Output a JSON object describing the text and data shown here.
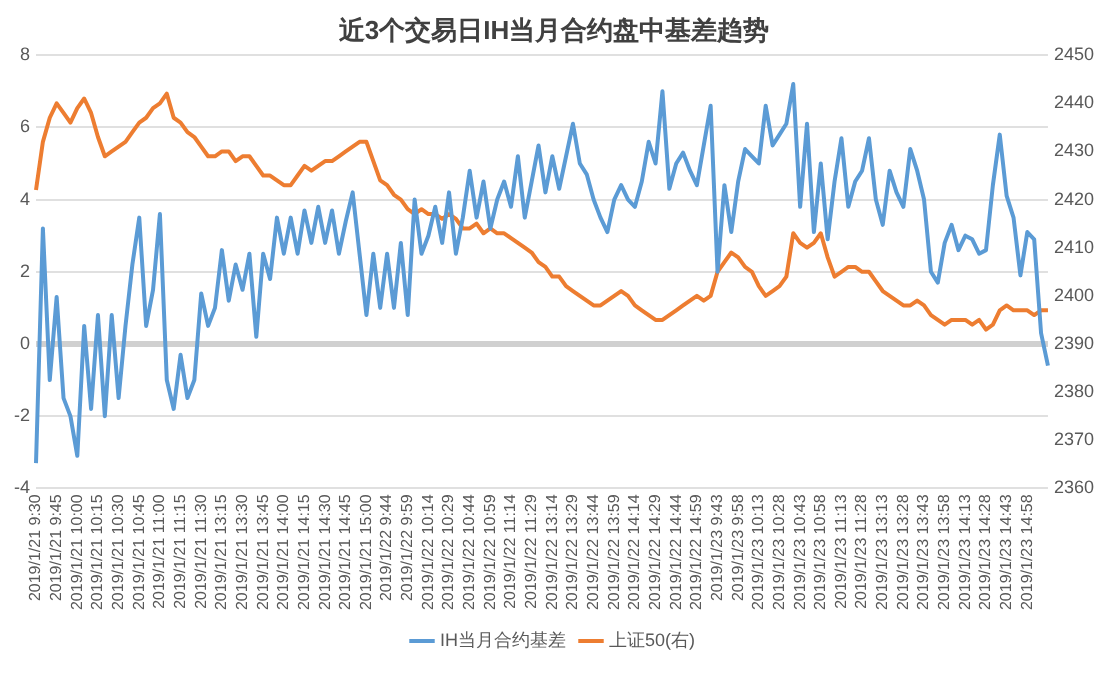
{
  "chart_data": {
    "type": "line",
    "title": "近3个交易日IH当月合约盘中基差趋势",
    "categories": [
      "2019/1/21 9:30",
      null,
      null,
      "2019/1/21 9:45",
      null,
      null,
      "2019/1/21 10:00",
      null,
      null,
      "2019/1/21 10:15",
      null,
      null,
      "2019/1/21 10:30",
      null,
      null,
      "2019/1/21 10:45",
      null,
      null,
      "2019/1/21 11:00",
      null,
      null,
      "2019/1/21 11:15",
      null,
      null,
      "2019/1/21 11:30",
      null,
      null,
      "2019/1/21 13:15",
      null,
      null,
      "2019/1/21 13:30",
      null,
      null,
      "2019/1/21 13:45",
      null,
      null,
      "2019/1/21 14:00",
      null,
      null,
      "2019/1/21 14:15",
      null,
      null,
      "2019/1/21 14:30",
      null,
      null,
      "2019/1/21 14:45",
      null,
      null,
      "2019/1/21 15:00",
      null,
      null,
      "2019/1/22 9:44",
      null,
      null,
      "2019/1/22 9:59",
      null,
      null,
      "2019/1/22 10:14",
      null,
      null,
      "2019/1/22 10:29",
      null,
      null,
      "2019/1/22 10:44",
      null,
      null,
      "2019/1/22 10:59",
      null,
      null,
      "2019/1/22 11:14",
      null,
      null,
      "2019/1/22 11:29",
      null,
      null,
      "2019/1/22 13:14",
      null,
      null,
      "2019/1/22 13:29",
      null,
      null,
      "2019/1/22 13:44",
      null,
      null,
      "2019/1/22 13:59",
      null,
      null,
      "2019/1/22 14:14",
      null,
      null,
      "2019/1/22 14:29",
      null,
      null,
      "2019/1/22 14:44",
      null,
      null,
      "2019/1/22 14:59",
      null,
      null,
      "2019/1/23 9:43",
      null,
      null,
      "2019/1/23 9:58",
      null,
      null,
      "2019/1/23 10:13",
      null,
      null,
      "2019/1/23 10:28",
      null,
      null,
      "2019/1/23 10:43",
      null,
      null,
      "2019/1/23 10:58",
      null,
      null,
      "2019/1/23 11:13",
      null,
      null,
      "2019/1/23 11:28",
      null,
      null,
      "2019/1/23 13:13",
      null,
      null,
      "2019/1/23 13:28",
      null,
      null,
      "2019/1/23 13:43",
      null,
      null,
      "2019/1/23 13:58",
      null,
      null,
      "2019/1/23 14:13",
      null,
      null,
      "2019/1/23 14:28",
      null,
      null,
      "2019/1/23 14:43",
      null,
      null,
      "2019/1/23 14:58",
      null,
      null,
      null
    ],
    "series": [
      {
        "name": "IH当月合约基差",
        "color": "#5b9bd5",
        "values": [
          -3.3,
          3.2,
          -1,
          1.3,
          -1.5,
          -2,
          -3.1,
          0.5,
          -1.8,
          0.8,
          -2,
          0.8,
          -1.5,
          0.5,
          2.2,
          3.5,
          0.5,
          1.5,
          3.6,
          -1,
          -1.8,
          -0.3,
          -1.5,
          -1,
          1.4,
          0.5,
          1,
          2.6,
          1.2,
          2.2,
          1.5,
          2.5,
          0.2,
          2.5,
          1.8,
          3.5,
          2.5,
          3.5,
          2.5,
          3.7,
          2.8,
          3.8,
          2.8,
          3.7,
          2.5,
          3.4,
          4.2,
          2.5,
          0.8,
          2.5,
          1,
          2.5,
          1,
          2.8,
          0.8,
          4,
          2.5,
          3,
          3.8,
          2.8,
          4.2,
          2.5,
          3.5,
          4.8,
          3.5,
          4.5,
          3.2,
          4,
          4.5,
          3.8,
          5.2,
          3.5,
          4.5,
          5.5,
          4.2,
          5.2,
          4.3,
          5.2,
          6.1,
          5,
          4.7,
          4,
          3.5,
          3.1,
          4,
          4.4,
          4,
          3.8,
          4.5,
          5.6,
          5,
          7,
          4.3,
          5,
          5.3,
          4.8,
          4.4,
          5.5,
          6.6,
          2,
          4.4,
          3.1,
          4.5,
          5.4,
          5.2,
          5,
          6.6,
          5.5,
          5.8,
          6.1,
          7.2,
          3.8,
          6.1,
          3.1,
          5,
          2.9,
          4.5,
          5.7,
          3.8,
          4.5,
          4.8,
          5.7,
          4,
          3.3,
          4.8,
          4.2,
          3.8,
          5.4,
          4.8,
          4,
          2,
          1.7,
          2.8,
          3.3,
          2.6,
          3,
          2.9,
          2.5,
          2.6,
          4.4,
          5.8,
          4.1,
          3.5,
          1.9,
          3.1,
          2.9,
          0.3,
          -0.6
        ]
      },
      {
        "name": "上证50(右)",
        "color": "#ed7d31",
        "axis": "y2",
        "values": [
          2422,
          2432,
          2437,
          2440,
          2438,
          2436,
          2439,
          2441,
          2438,
          2433,
          2429,
          2430,
          2431,
          2432,
          2434,
          2436,
          2437,
          2439,
          2440,
          2442,
          2437,
          2436,
          2434,
          2433,
          2431,
          2429,
          2429,
          2430,
          2430,
          2428,
          2429,
          2429,
          2427,
          2425,
          2425,
          2424,
          2423,
          2423,
          2425,
          2427,
          2426,
          2427,
          2428,
          2428,
          2429,
          2430,
          2431,
          2432,
          2432,
          2428,
          2424,
          2423,
          2421,
          2420,
          2418,
          2417,
          2418,
          2417,
          2417,
          2416,
          2417,
          2416,
          2414,
          2414,
          2415,
          2413,
          2414,
          2413,
          2413,
          2412,
          2411,
          2410,
          2409,
          2407,
          2406,
          2404,
          2404,
          2402,
          2401,
          2400,
          2399,
          2398,
          2398,
          2399,
          2400,
          2401,
          2400,
          2398,
          2397,
          2396,
          2395,
          2395,
          2396,
          2397,
          2398,
          2399,
          2400,
          2399,
          2400,
          2405,
          2407,
          2409,
          2408,
          2406,
          2405,
          2402,
          2400,
          2401,
          2402,
          2404,
          2413,
          2411,
          2410,
          2411,
          2413,
          2408,
          2404,
          2405,
          2406,
          2406,
          2405,
          2405,
          2403,
          2401,
          2400,
          2399,
          2398,
          2398,
          2399,
          2398,
          2396,
          2395,
          2394,
          2395,
          2395,
          2395,
          2394,
          2395,
          2393,
          2394,
          2397,
          2398,
          2397,
          2397,
          2397,
          2396,
          2397,
          2397
        ]
      }
    ],
    "ylim": [
      -4,
      8
    ],
    "yticks": [
      -4,
      -2,
      0,
      2,
      4,
      6,
      8
    ],
    "y2lim": [
      2360,
      2450
    ],
    "y2ticks": [
      2360,
      2370,
      2380,
      2390,
      2400,
      2410,
      2420,
      2430,
      2440,
      2450
    ],
    "grid": "y",
    "legend": "bottom"
  }
}
